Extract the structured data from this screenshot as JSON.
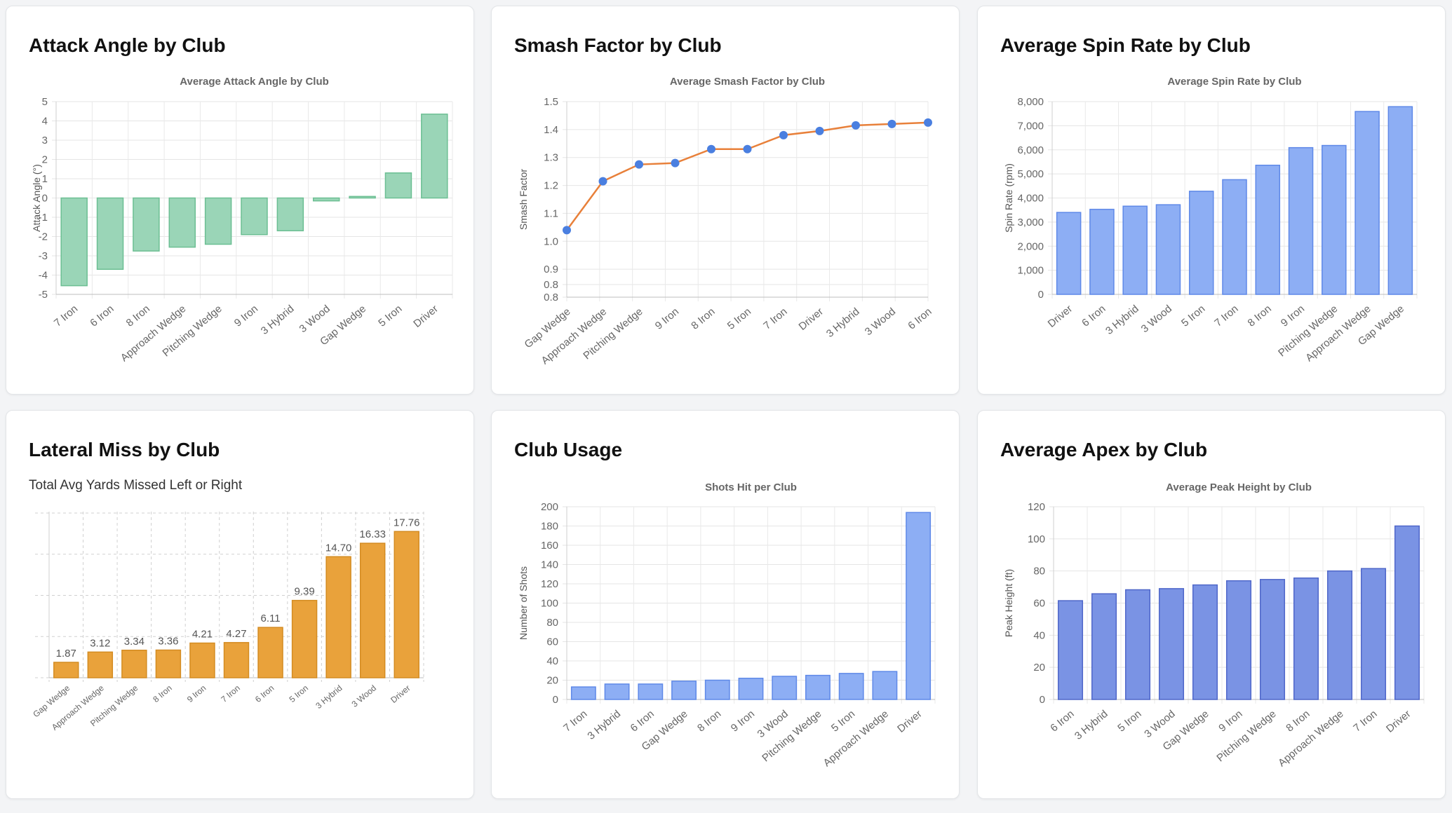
{
  "cards": [
    {
      "title": "Attack Angle by Club"
    },
    {
      "title": "Smash Factor by Club"
    },
    {
      "title": "Average Spin Rate by Club"
    },
    {
      "title": "Lateral Miss by Club",
      "subtitle": "Total Avg Yards Missed Left or Right"
    },
    {
      "title": "Club Usage"
    },
    {
      "title": "Average Apex by Club"
    }
  ],
  "chart_data": [
    {
      "type": "bar",
      "title": "Average Attack Angle by Club",
      "xlabel": "",
      "ylabel": "Attack Angle (°)",
      "categories": [
        "7 Iron",
        "6 Iron",
        "8 Iron",
        "Approach Wedge",
        "Pitching Wedge",
        "9 Iron",
        "3 Hybrid",
        "3 Wood",
        "Gap Wedge",
        "5 Iron",
        "Driver"
      ],
      "values": [
        -4.55,
        -3.7,
        -2.75,
        -2.55,
        -2.4,
        -1.9,
        -1.7,
        -0.15,
        0.08,
        1.3,
        4.35
      ],
      "ylim": [
        -5,
        5
      ],
      "yticks": [
        5,
        4,
        3,
        2,
        1,
        0,
        -1,
        -2,
        -3,
        -4,
        -5
      ],
      "grid": true,
      "colors": {
        "fill": "#9ad5b7",
        "stroke": "#6cbf93"
      }
    },
    {
      "type": "line",
      "title": "Average Smash Factor by Club",
      "xlabel": "",
      "ylabel": "Smash Factor",
      "categories": [
        "Gap Wedge",
        "Approach Wedge",
        "Pitching Wedge",
        "9 Iron",
        "8 Iron",
        "5 Iron",
        "7 Iron",
        "Driver",
        "3 Hybrid",
        "3 Wood",
        "6 Iron"
      ],
      "values": [
        1.04,
        1.215,
        1.275,
        1.28,
        1.33,
        1.33,
        1.38,
        1.395,
        1.415,
        1.42,
        1.425
      ],
      "ylim": [
        0.8,
        1.5
      ],
      "yticks": [
        "1.5",
        "1.4",
        "1.3",
        "1.2",
        "1.1",
        "1.0",
        "0.9",
        "0.8",
        "0.8"
      ],
      "grid": true,
      "colors": {
        "line": "#e8803a",
        "point": "#4a7fe0"
      }
    },
    {
      "type": "bar",
      "title": "Average Spin Rate by Club",
      "xlabel": "",
      "ylabel": "Spin Rate (rpm)",
      "categories": [
        "Driver",
        "6 Iron",
        "3 Hybrid",
        "3 Wood",
        "5 Iron",
        "7 Iron",
        "8 Iron",
        "9 Iron",
        "Pitching Wedge",
        "Approach Wedge",
        "Gap Wedge"
      ],
      "values": [
        3400,
        3530,
        3660,
        3720,
        4280,
        4760,
        5360,
        6090,
        6180,
        7590,
        7790
      ],
      "ylim": [
        0,
        8000
      ],
      "yticks": [
        "8,000",
        "7,000",
        "6,000",
        "5,000",
        "4,000",
        "3,000",
        "2,000",
        "1,000",
        "0"
      ],
      "grid": true,
      "colors": {
        "fill": "#8daef4",
        "stroke": "#5f89e8"
      }
    },
    {
      "type": "bar",
      "title": "",
      "xlabel": "",
      "ylabel": "",
      "categories": [
        "Gap Wedge",
        "Approach Wedge",
        "Pitching Wedge",
        "8 Iron",
        "9 Iron",
        "7 Iron",
        "6 Iron",
        "5 Iron",
        "3 Hybrid",
        "3 Wood",
        "Driver"
      ],
      "values": [
        1.87,
        3.12,
        3.34,
        3.36,
        4.21,
        4.27,
        6.11,
        9.39,
        14.7,
        16.33,
        17.76
      ],
      "labels": [
        "1.87",
        "3.12",
        "3.34",
        "3.36",
        "4.21",
        "4.27",
        "6.11",
        "9.39",
        "14.70",
        "16.33",
        "17.76"
      ],
      "ylim": [
        0,
        20
      ],
      "grid": true,
      "colors": {
        "fill": "#e9a23b",
        "stroke": "#d48c22"
      }
    },
    {
      "type": "bar",
      "title": "Shots Hit per Club",
      "xlabel": "",
      "ylabel": "Number of Shots",
      "categories": [
        "7 Iron",
        "3 Hybrid",
        "6 Iron",
        "Gap Wedge",
        "8 Iron",
        "9 Iron",
        "3 Wood",
        "Pitching Wedge",
        "5 Iron",
        "Approach Wedge",
        "Driver"
      ],
      "values": [
        13,
        16,
        16,
        19,
        20,
        22,
        24,
        25,
        27,
        29,
        194
      ],
      "ylim": [
        0,
        200
      ],
      "yticks": [
        "200",
        "180",
        "160",
        "140",
        "120",
        "100",
        "80",
        "60",
        "40",
        "20",
        "0"
      ],
      "grid": true,
      "colors": {
        "fill": "#8daef4",
        "stroke": "#5f89e8"
      }
    },
    {
      "type": "bar",
      "title": "Average Peak Height by Club",
      "xlabel": "",
      "ylabel": "Peak Height (ft)",
      "categories": [
        "6 Iron",
        "3 Hybrid",
        "5 Iron",
        "3 Wood",
        "Gap Wedge",
        "9 Iron",
        "Pitching Wedge",
        "8 Iron",
        "Approach Wedge",
        "7 Iron",
        "Driver"
      ],
      "values": [
        61.5,
        65.8,
        68.3,
        69,
        71.3,
        73.9,
        74.7,
        75.6,
        80,
        81.5,
        108
      ],
      "ylim": [
        0,
        120
      ],
      "yticks": [
        "120",
        "100",
        "80",
        "60",
        "40",
        "20",
        "0"
      ],
      "grid": true,
      "colors": {
        "fill": "#7a93e4",
        "stroke": "#4f67c9"
      }
    }
  ]
}
